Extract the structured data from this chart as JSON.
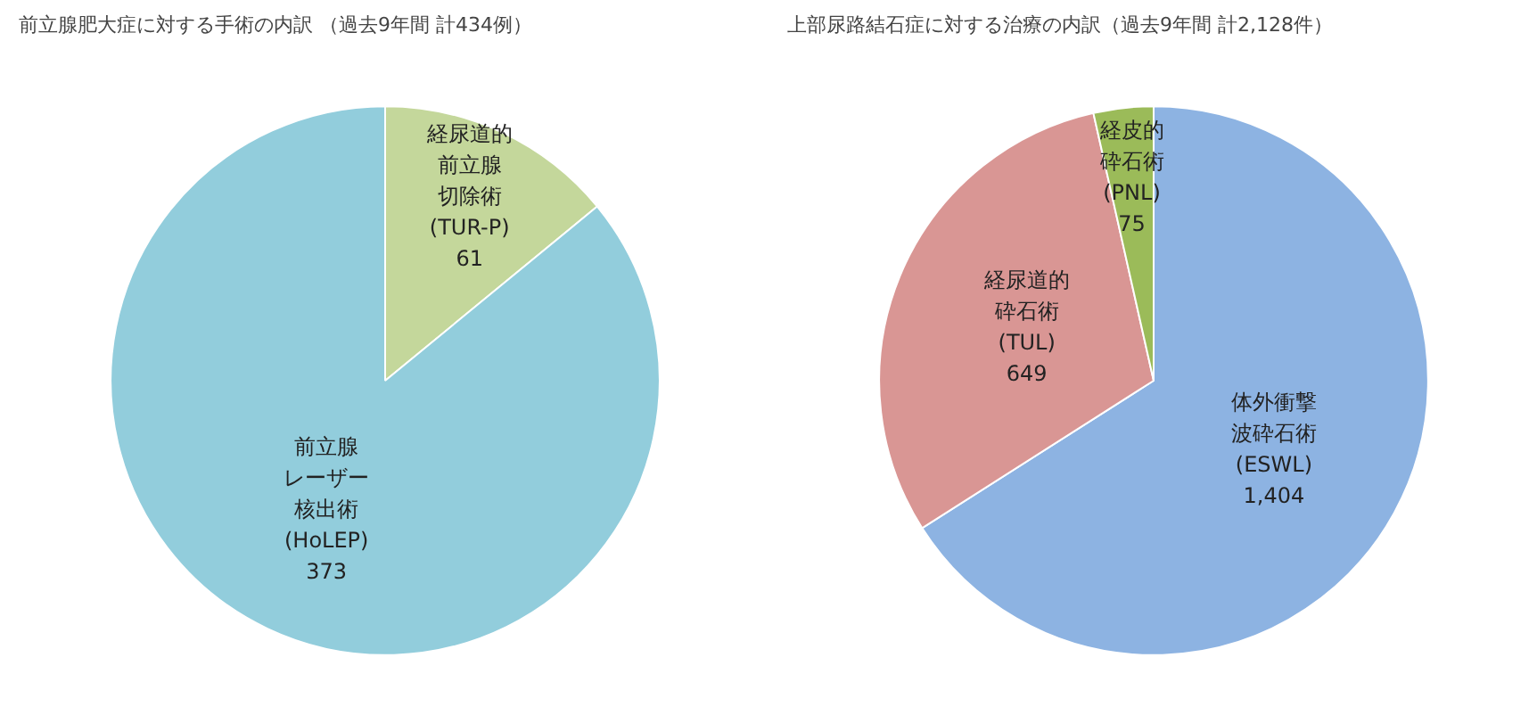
{
  "chart_data": [
    {
      "type": "pie",
      "title": "前立腺肥大症に対する手術の内訳 （過去9年間 計434例）",
      "categories": [
        "経尿道的前立腺切除術(TUR-P)",
        "前立腺レーザー核出術(HoLEP)"
      ],
      "values": [
        61,
        373
      ],
      "colors": [
        "#c4d79b",
        "#92cddc"
      ],
      "data_labels": true
    },
    {
      "type": "pie",
      "title": "上部尿路結石症に対する治療の内訳（過去9年間 計2,128件）",
      "categories": [
        "体外衝撃波砕石術(ESWL)",
        "経尿道的砕石術(TUL)",
        "経皮的砕石術(PNL)"
      ],
      "values": [
        1404,
        649,
        75
      ],
      "colors": [
        "#8db3e2",
        "#d99694",
        "#9bbb59"
      ],
      "value_labels": [
        "1,404",
        "649",
        "75"
      ]
    }
  ]
}
